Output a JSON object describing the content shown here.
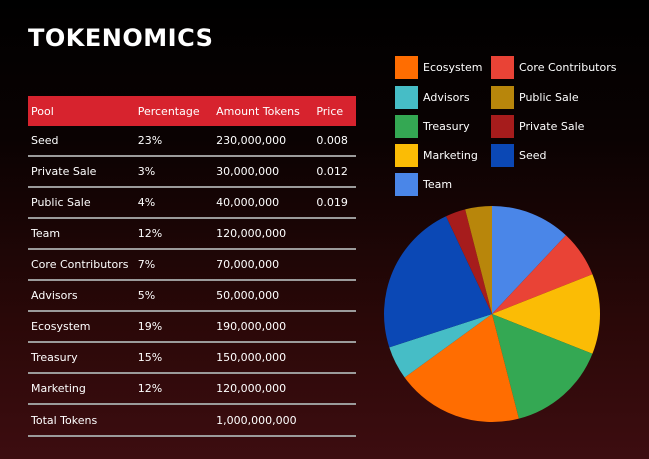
{
  "title": "TOKENOMICS",
  "table": {
    "headers": [
      "Pool",
      "Percentage",
      "Amount Tokens",
      "Price"
    ],
    "rows": [
      {
        "pool": "Seed",
        "percentage": "23%",
        "amount": "230,000,000",
        "price": "0.008"
      },
      {
        "pool": "Private Sale",
        "percentage": "3%",
        "amount": "30,000,000",
        "price": "0.012"
      },
      {
        "pool": "Public Sale",
        "percentage": "4%",
        "amount": "40,000,000",
        "price": "0.019"
      },
      {
        "pool": "Team",
        "percentage": "12%",
        "amount": "120,000,000",
        "price": ""
      },
      {
        "pool": "Core Contributors",
        "percentage": "7%",
        "amount": "70,000,000",
        "price": ""
      },
      {
        "pool": "Advisors",
        "percentage": "5%",
        "amount": "50,000,000",
        "price": ""
      },
      {
        "pool": "Ecosystem",
        "percentage": "19%",
        "amount": "190,000,000",
        "price": ""
      },
      {
        "pool": "Treasury",
        "percentage": "15%",
        "amount": "150,000,000",
        "price": ""
      },
      {
        "pool": "Marketing",
        "percentage": "12%",
        "amount": "120,000,000",
        "price": ""
      }
    ],
    "total": {
      "label": "Total Tokens",
      "amount": "1,000,000,000"
    }
  },
  "chart_data": {
    "type": "pie",
    "legend_position": "top",
    "slices": [
      {
        "label": "Team",
        "value": 12,
        "color": "#4a86e8"
      },
      {
        "label": "Core Contributors",
        "value": 7,
        "color": "#e94336"
      },
      {
        "label": "Marketing",
        "value": 12,
        "color": "#fbbc05"
      },
      {
        "label": "Treasury",
        "value": 15,
        "color": "#34a853"
      },
      {
        "label": "Ecosystem",
        "value": 19,
        "color": "#ff6d01"
      },
      {
        "label": "Advisors",
        "value": 5,
        "color": "#46bdc6"
      },
      {
        "label": "Seed",
        "value": 23,
        "color": "#0b48b5"
      },
      {
        "label": "Private Sale",
        "value": 3,
        "color": "#a61c1c"
      },
      {
        "label": "Public Sale",
        "value": 4,
        "color": "#b8860b"
      }
    ],
    "legend": [
      {
        "label": "Ecosystem",
        "color": "#ff6d01"
      },
      {
        "label": "Core Contributors",
        "color": "#e94336"
      },
      {
        "label": "Advisors",
        "color": "#46bdc6"
      },
      {
        "label": "Public Sale",
        "color": "#b8860b"
      },
      {
        "label": "Treasury",
        "color": "#34a853"
      },
      {
        "label": "Private Sale",
        "color": "#a61c1c"
      },
      {
        "label": "Marketing",
        "color": "#fbbc05"
      },
      {
        "label": "Seed",
        "color": "#0b48b5"
      },
      {
        "label": "Team",
        "color": "#4a86e8"
      }
    ]
  }
}
